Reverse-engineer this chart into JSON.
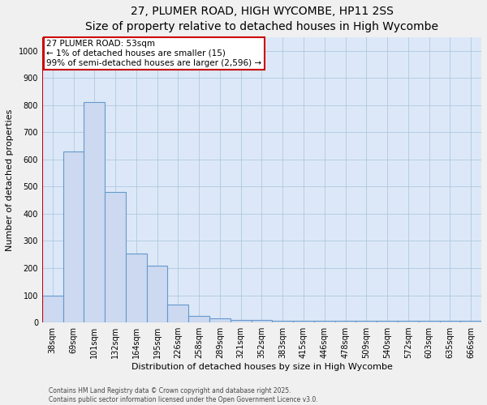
{
  "title1": "27, PLUMER ROAD, HIGH WYCOMBE, HP11 2SS",
  "title2": "Size of property relative to detached houses in High Wycombe",
  "xlabel": "Distribution of detached houses by size in High Wycombe",
  "ylabel": "Number of detached properties",
  "categories": [
    "38sqm",
    "69sqm",
    "101sqm",
    "132sqm",
    "164sqm",
    "195sqm",
    "226sqm",
    "258sqm",
    "289sqm",
    "321sqm",
    "352sqm",
    "383sqm",
    "415sqm",
    "446sqm",
    "478sqm",
    "509sqm",
    "540sqm",
    "572sqm",
    "603sqm",
    "635sqm",
    "666sqm"
  ],
  "values": [
    100,
    630,
    810,
    480,
    255,
    210,
    65,
    25,
    15,
    10,
    10,
    5,
    5,
    5,
    5,
    5,
    5,
    5,
    5,
    5,
    5
  ],
  "bar_color": "#ccd9f0",
  "bar_edge_color": "#6699cc",
  "annotation_title": "27 PLUMER ROAD: 53sqm",
  "annotation_line1": "← 1% of detached houses are smaller (15)",
  "annotation_line2": "99% of semi-detached houses are larger (2,596) →",
  "annotation_box_color": "#ffffff",
  "annotation_box_edge_color": "#cc0000",
  "red_line_color": "#cc0000",
  "ylim": [
    0,
    1050
  ],
  "yticks": [
    0,
    100,
    200,
    300,
    400,
    500,
    600,
    700,
    800,
    900,
    1000
  ],
  "footer1": "Contains HM Land Registry data © Crown copyright and database right 2025.",
  "footer2": "Contains public sector information licensed under the Open Government Licence v3.0.",
  "plot_bg_color": "#dce8f8",
  "fig_bg_color": "#f0f0f0",
  "grid_color": "#b0c8e0",
  "title_fontsize": 10,
  "subtitle_fontsize": 9,
  "tick_fontsize": 7,
  "label_fontsize": 8,
  "annot_fontsize": 7.5,
  "footer_fontsize": 5.5
}
